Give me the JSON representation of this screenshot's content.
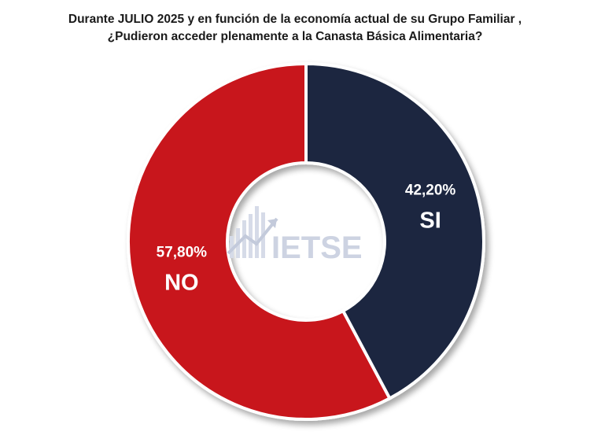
{
  "chart_data": {
    "type": "pie",
    "donut": true,
    "title_line1": "Durante JULIO 2025 y en función de la economía actual de su Grupo Familiar ,",
    "title_line2": "¿Pudieron acceder plenamente a la Canasta Básica Alimentaria?",
    "slices": [
      {
        "label": "SI",
        "value": 42.2,
        "value_label": "42,20%",
        "color": "#1c2841"
      },
      {
        "label": "NO",
        "value": 57.8,
        "value_label": "57,80%",
        "color": "#c8141c"
      }
    ]
  },
  "watermark": {
    "text": "IETSE"
  }
}
